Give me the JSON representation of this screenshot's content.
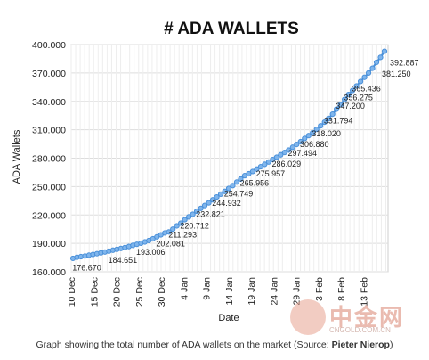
{
  "chart_data": {
    "type": "line",
    "title": "# ADA WALLETS",
    "xlabel": "Date",
    "ylabel": "ADA Wallets",
    "ylim": [
      160000,
      400000
    ],
    "yticks": [
      160000,
      190000,
      220000,
      250000,
      280000,
      310000,
      340000,
      370000,
      400000
    ],
    "ytick_labels": [
      "160.000",
      "190.000",
      "220.000",
      "250.000",
      "280.000",
      "310.000",
      "340.000",
      "370.000",
      "400.000"
    ],
    "x_start": "10 Dec",
    "x_days": 60,
    "xticks": [
      {
        "label": "10 Dec",
        "day": 0
      },
      {
        "label": "15 Dec",
        "day": 5
      },
      {
        "label": "20 Dec",
        "day": 10
      },
      {
        "label": "25 Dec",
        "day": 15
      },
      {
        "label": "30 Dec",
        "day": 20
      },
      {
        "label": "4 Jan",
        "day": 25
      },
      {
        "label": "9 Jan",
        "day": 30
      },
      {
        "label": "14 Jan",
        "day": 35
      },
      {
        "label": "19 Jan",
        "day": 40
      },
      {
        "label": "24 Jan",
        "day": 45
      },
      {
        "label": "29 Jan",
        "day": 50
      },
      {
        "label": "3 Feb",
        "day": 55
      },
      {
        "label": "8 Feb",
        "day": 60
      },
      {
        "label": "13 Feb",
        "day": 65
      }
    ],
    "grid": true,
    "series": [
      {
        "color": "#4a90d9",
        "values": [
          174200,
          175300,
          176000,
          176670,
          177500,
          178300,
          179100,
          180000,
          180900,
          181800,
          182800,
          183700,
          184651,
          185600,
          186700,
          187900,
          189000,
          190200,
          191500,
          193006,
          194800,
          196900,
          199000,
          201000,
          202081,
          205000,
          208500,
          211293,
          215000,
          218000,
          220712,
          224000,
          227000,
          230000,
          232821,
          236000,
          239000,
          242000,
          244932,
          248000,
          251000,
          254749,
          258000,
          261500,
          263500,
          265956,
          268500,
          271000,
          273500,
          275957,
          278500,
          281000,
          283500,
          286029,
          288500,
          291500,
          294500,
          297494,
          300800,
          303800,
          306880,
          310500,
          314200,
          318020,
          322000,
          326500,
          331794,
          336500,
          342000,
          347200,
          351500,
          356275,
          361000,
          365436,
          370000,
          375000,
          381250,
          386500,
          392887
        ]
      }
    ],
    "data_labels": [
      {
        "text": "176.670",
        "index": 3
      },
      {
        "text": "184.651",
        "index": 12
      },
      {
        "text": "193.006",
        "index": 19
      },
      {
        "text": "202.081",
        "index": 24
      },
      {
        "text": "211.293",
        "index": 27
      },
      {
        "text": "220.712",
        "index": 30
      },
      {
        "text": "232.821",
        "index": 34
      },
      {
        "text": "244.932",
        "index": 38
      },
      {
        "text": "254.749",
        "index": 41
      },
      {
        "text": "265.956",
        "index": 45
      },
      {
        "text": "275.957",
        "index": 49
      },
      {
        "text": "286.029",
        "index": 53
      },
      {
        "text": "297.494",
        "index": 57
      },
      {
        "text": "306.880",
        "index": 60
      },
      {
        "text": "318.020",
        "index": 63
      },
      {
        "text": "331.794",
        "index": 66
      },
      {
        "text": "347.200",
        "index": 69
      },
      {
        "text": "356.275",
        "index": 71
      },
      {
        "text": "365.436",
        "index": 73
      },
      {
        "text": "381.250",
        "index": 76
      },
      {
        "text": "392.887",
        "index": 78
      }
    ]
  },
  "caption": {
    "text": "Graph showing the total number of ADA wallets on the market (Source: ",
    "source": "Pieter Nierop",
    "close": ")"
  },
  "watermark": {
    "text": "中金网",
    "url": "CNGOLD.COM.CN"
  }
}
